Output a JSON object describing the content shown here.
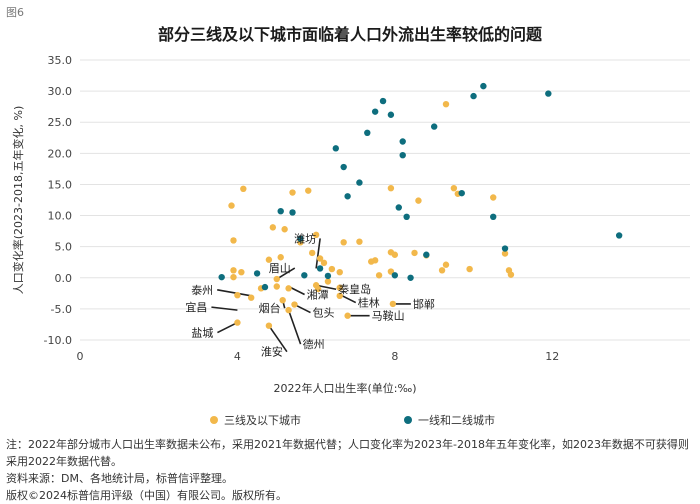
{
  "figure_label": "图6",
  "title": "部分三线及以下城市面临着人口外流出生率较低的问题",
  "notes": [
    "注：2022年部分城市人口出生率数据未公布，采用2021年数据代替；人口变化率为2023年-2018年五年变化率，如2023年数据不可获得则采用2022年数据代替。",
    "资料来源：DM、各地统计局，标普信评整理。",
    "版权©2024标普信用评级（中国）有限公司。版权所有。"
  ],
  "colors": {
    "tier3": "#F2B84B",
    "tier12": "#0E6E7E"
  },
  "chart_data": {
    "type": "scatter",
    "title": "部分三线及以下城市面临着人口外流出生率较低的问题",
    "xlabel": "2022年人口出生率(单位:‰)",
    "ylabel": "人口变化率(2023-2018,五年变化, %)",
    "xlim": [
      0,
      15.5
    ],
    "ylim": [
      -10,
      35
    ],
    "xticks": [
      0,
      4,
      8,
      12
    ],
    "yticks": [
      -10.0,
      -5.0,
      0.0,
      5.0,
      10.0,
      15.0,
      20.0,
      25.0,
      30.0,
      35.0
    ],
    "ytick_labels": [
      "-10.0",
      "-5.0",
      "0.0",
      "5.0",
      "10.0",
      "15.0",
      "20.0",
      "25.0",
      "30.0",
      "35.0"
    ],
    "grid": "horizontal",
    "legend_position": "bottom",
    "series": [
      {
        "name": "三线及以下城市",
        "color": "#F2B84B",
        "points": [
          [
            3.85,
            11.6
          ],
          [
            4.15,
            14.3
          ],
          [
            3.9,
            6.0
          ],
          [
            3.9,
            1.2
          ],
          [
            4.1,
            0.9
          ],
          [
            4.8,
            2.9
          ],
          [
            5.1,
            3.3
          ],
          [
            4.9,
            8.1
          ],
          [
            5.2,
            7.8
          ],
          [
            5.4,
            13.7
          ],
          [
            5.8,
            14.0
          ],
          [
            6.0,
            6.9
          ],
          [
            5.6,
            5.7
          ],
          [
            5.9,
            4.0
          ],
          [
            6.1,
            3.1
          ],
          [
            6.2,
            2.4
          ],
          [
            6.4,
            1.4
          ],
          [
            6.6,
            0.9
          ],
          [
            6.7,
            5.7
          ],
          [
            7.1,
            5.8
          ],
          [
            7.4,
            2.6
          ],
          [
            7.5,
            2.8
          ],
          [
            7.6,
            0.4
          ],
          [
            7.9,
            1.0
          ],
          [
            8.0,
            3.7
          ],
          [
            7.9,
            4.1
          ],
          [
            8.5,
            4.0
          ],
          [
            8.8,
            3.6
          ],
          [
            7.9,
            14.4
          ],
          [
            8.6,
            12.4
          ],
          [
            9.2,
            1.2
          ],
          [
            9.3,
            2.1
          ],
          [
            9.5,
            14.4
          ],
          [
            9.6,
            13.5
          ],
          [
            9.3,
            27.9
          ],
          [
            9.9,
            1.4
          ],
          [
            10.5,
            12.9
          ],
          [
            10.8,
            3.9
          ],
          [
            10.9,
            1.2
          ],
          [
            10.95,
            0.5
          ],
          [
            4.0,
            -2.8
          ],
          [
            4.6,
            -1.7
          ],
          [
            4.35,
            -3.2
          ],
          [
            5.0,
            -1.4
          ],
          [
            5.3,
            -1.7
          ],
          [
            5.15,
            -3.6
          ],
          [
            5.45,
            -4.3
          ],
          [
            5.3,
            -5.2
          ],
          [
            6.05,
            -1.8
          ],
          [
            6.6,
            -1.6
          ],
          [
            6.6,
            -2.9
          ],
          [
            6.8,
            -6.1
          ],
          [
            7.95,
            -4.2
          ],
          [
            4.0,
            -7.2
          ],
          [
            4.8,
            -7.7
          ],
          [
            6.0,
            -1.2
          ],
          [
            6.3,
            -0.6
          ],
          [
            5.0,
            -0.2
          ],
          [
            3.9,
            0.1
          ]
        ]
      },
      {
        "name": "一线和二线城市",
        "color": "#0E6E7E",
        "points": [
          [
            3.6,
            0.1
          ],
          [
            4.5,
            0.7
          ],
          [
            4.7,
            -1.5
          ],
          [
            5.1,
            10.7
          ],
          [
            5.4,
            10.5
          ],
          [
            5.6,
            6.3
          ],
          [
            5.7,
            0.4
          ],
          [
            6.1,
            1.5
          ],
          [
            6.3,
            0.3
          ],
          [
            6.5,
            20.8
          ],
          [
            6.7,
            17.8
          ],
          [
            6.8,
            13.1
          ],
          [
            7.1,
            15.3
          ],
          [
            7.3,
            23.3
          ],
          [
            7.5,
            26.7
          ],
          [
            7.7,
            28.4
          ],
          [
            7.9,
            26.2
          ],
          [
            8.1,
            11.3
          ],
          [
            8.2,
            21.9
          ],
          [
            8.2,
            19.7
          ],
          [
            8.3,
            9.8
          ],
          [
            8.4,
            0.0
          ],
          [
            8.0,
            0.4
          ],
          [
            8.8,
            3.7
          ],
          [
            9.0,
            24.3
          ],
          [
            9.7,
            13.6
          ],
          [
            10.0,
            29.2
          ],
          [
            10.25,
            30.8
          ],
          [
            10.5,
            9.8
          ],
          [
            10.8,
            4.7
          ],
          [
            11.9,
            29.6
          ],
          [
            13.7,
            6.8
          ]
        ]
      }
    ],
    "annotations": [
      {
        "text": "潍坊",
        "point": [
          6.0,
          1.5
        ]
      },
      {
        "text": "眉山",
        "point": [
          5.0,
          -0.2
        ]
      },
      {
        "text": "泰州",
        "point": [
          4.35,
          -2.9
        ]
      },
      {
        "text": "秦皇岛",
        "point": [
          6.0,
          -1.2
        ]
      },
      {
        "text": "湘潭",
        "point": [
          5.3,
          -1.4
        ]
      },
      {
        "text": "桂林",
        "point": [
          6.6,
          -2.7
        ]
      },
      {
        "text": "邯郸",
        "point": [
          7.95,
          -4.2
        ]
      },
      {
        "text": "宜昌",
        "point": [
          4.0,
          -5.2
        ]
      },
      {
        "text": "烟台",
        "point": [
          5.15,
          -3.6
        ]
      },
      {
        "text": "包头",
        "point": [
          5.45,
          -4.3
        ]
      },
      {
        "text": "马鞍山",
        "point": [
          6.8,
          -6.1
        ]
      },
      {
        "text": "盐城",
        "point": [
          4.0,
          -7.2
        ]
      },
      {
        "text": "淮安",
        "point": [
          4.8,
          -7.7
        ]
      },
      {
        "text": "德州",
        "point": [
          5.3,
          -5.2
        ]
      }
    ]
  }
}
